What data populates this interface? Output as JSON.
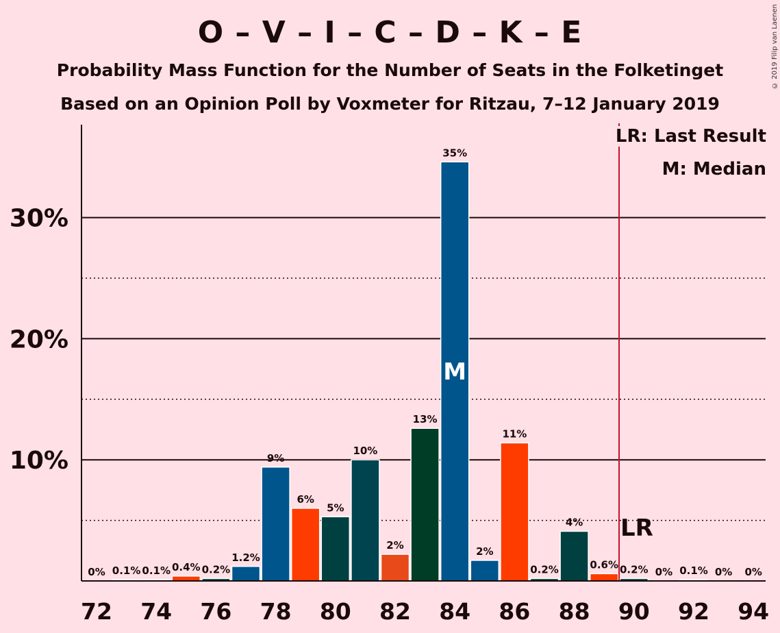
{
  "title": "O – V – I – C – D – K – E",
  "subtitle1": "Probability Mass Function for the Number of Seats in the Folketinget",
  "subtitle2": "Based on an Opinion Poll by Voxmeter for Ritzau, 7–12 January 2019",
  "copyright": "© 2019 Filip van Laenen",
  "legend": {
    "lr": "LR: Last Result",
    "median": "M: Median"
  },
  "markers": {
    "median_label": "M",
    "lr_label": "LR"
  },
  "colors": {
    "background": "#ffe0e6",
    "lr_line": "#c8102e"
  },
  "chart_data": {
    "type": "bar",
    "x": [
      72,
      73,
      74,
      75,
      76,
      77,
      78,
      79,
      80,
      81,
      82,
      83,
      84,
      85,
      86,
      87,
      88,
      89,
      90,
      91,
      92,
      93,
      94
    ],
    "values": [
      0,
      0.1,
      0.1,
      0.4,
      0.2,
      1.2,
      9.4,
      6.0,
      5.3,
      10.0,
      2.2,
      12.6,
      34.6,
      1.7,
      11.4,
      0.2,
      4.1,
      0.6,
      0.2,
      0,
      0.1,
      0,
      0
    ],
    "labels": [
      "0%",
      "0.1%",
      "0.1%",
      "0.4%",
      "0.2%",
      "1.2%",
      "9%",
      "6%",
      "5%",
      "10%",
      "2%",
      "13%",
      "35%",
      "2%",
      "11%",
      "0.2%",
      "4%",
      "0.6%",
      "0.2%",
      "0%",
      "0.1%",
      "0%",
      "0%"
    ],
    "colors": [
      "#00558c",
      "#00558c",
      "#005b8f",
      "#ff3c00",
      "#004040",
      "#00558c",
      "#00558c",
      "#ff3c00",
      "#004040",
      "#004450",
      "#e84a1a",
      "#003d26",
      "#00558c",
      "#00558c",
      "#ff3c00",
      "#004040",
      "#004040",
      "#ff3c00",
      "#004040",
      "#004040",
      "#00558c",
      "#004040",
      "#004040"
    ],
    "xticks": [
      72,
      74,
      76,
      78,
      80,
      82,
      84,
      86,
      88,
      90,
      92,
      94
    ],
    "yticks": [
      10,
      20,
      30
    ],
    "ytick_labels": [
      "10%",
      "20%",
      "30%"
    ],
    "minor_yticks": [
      5,
      15,
      25
    ],
    "ylim": [
      0,
      37.5
    ],
    "median": 84,
    "last_result": 89.5
  }
}
